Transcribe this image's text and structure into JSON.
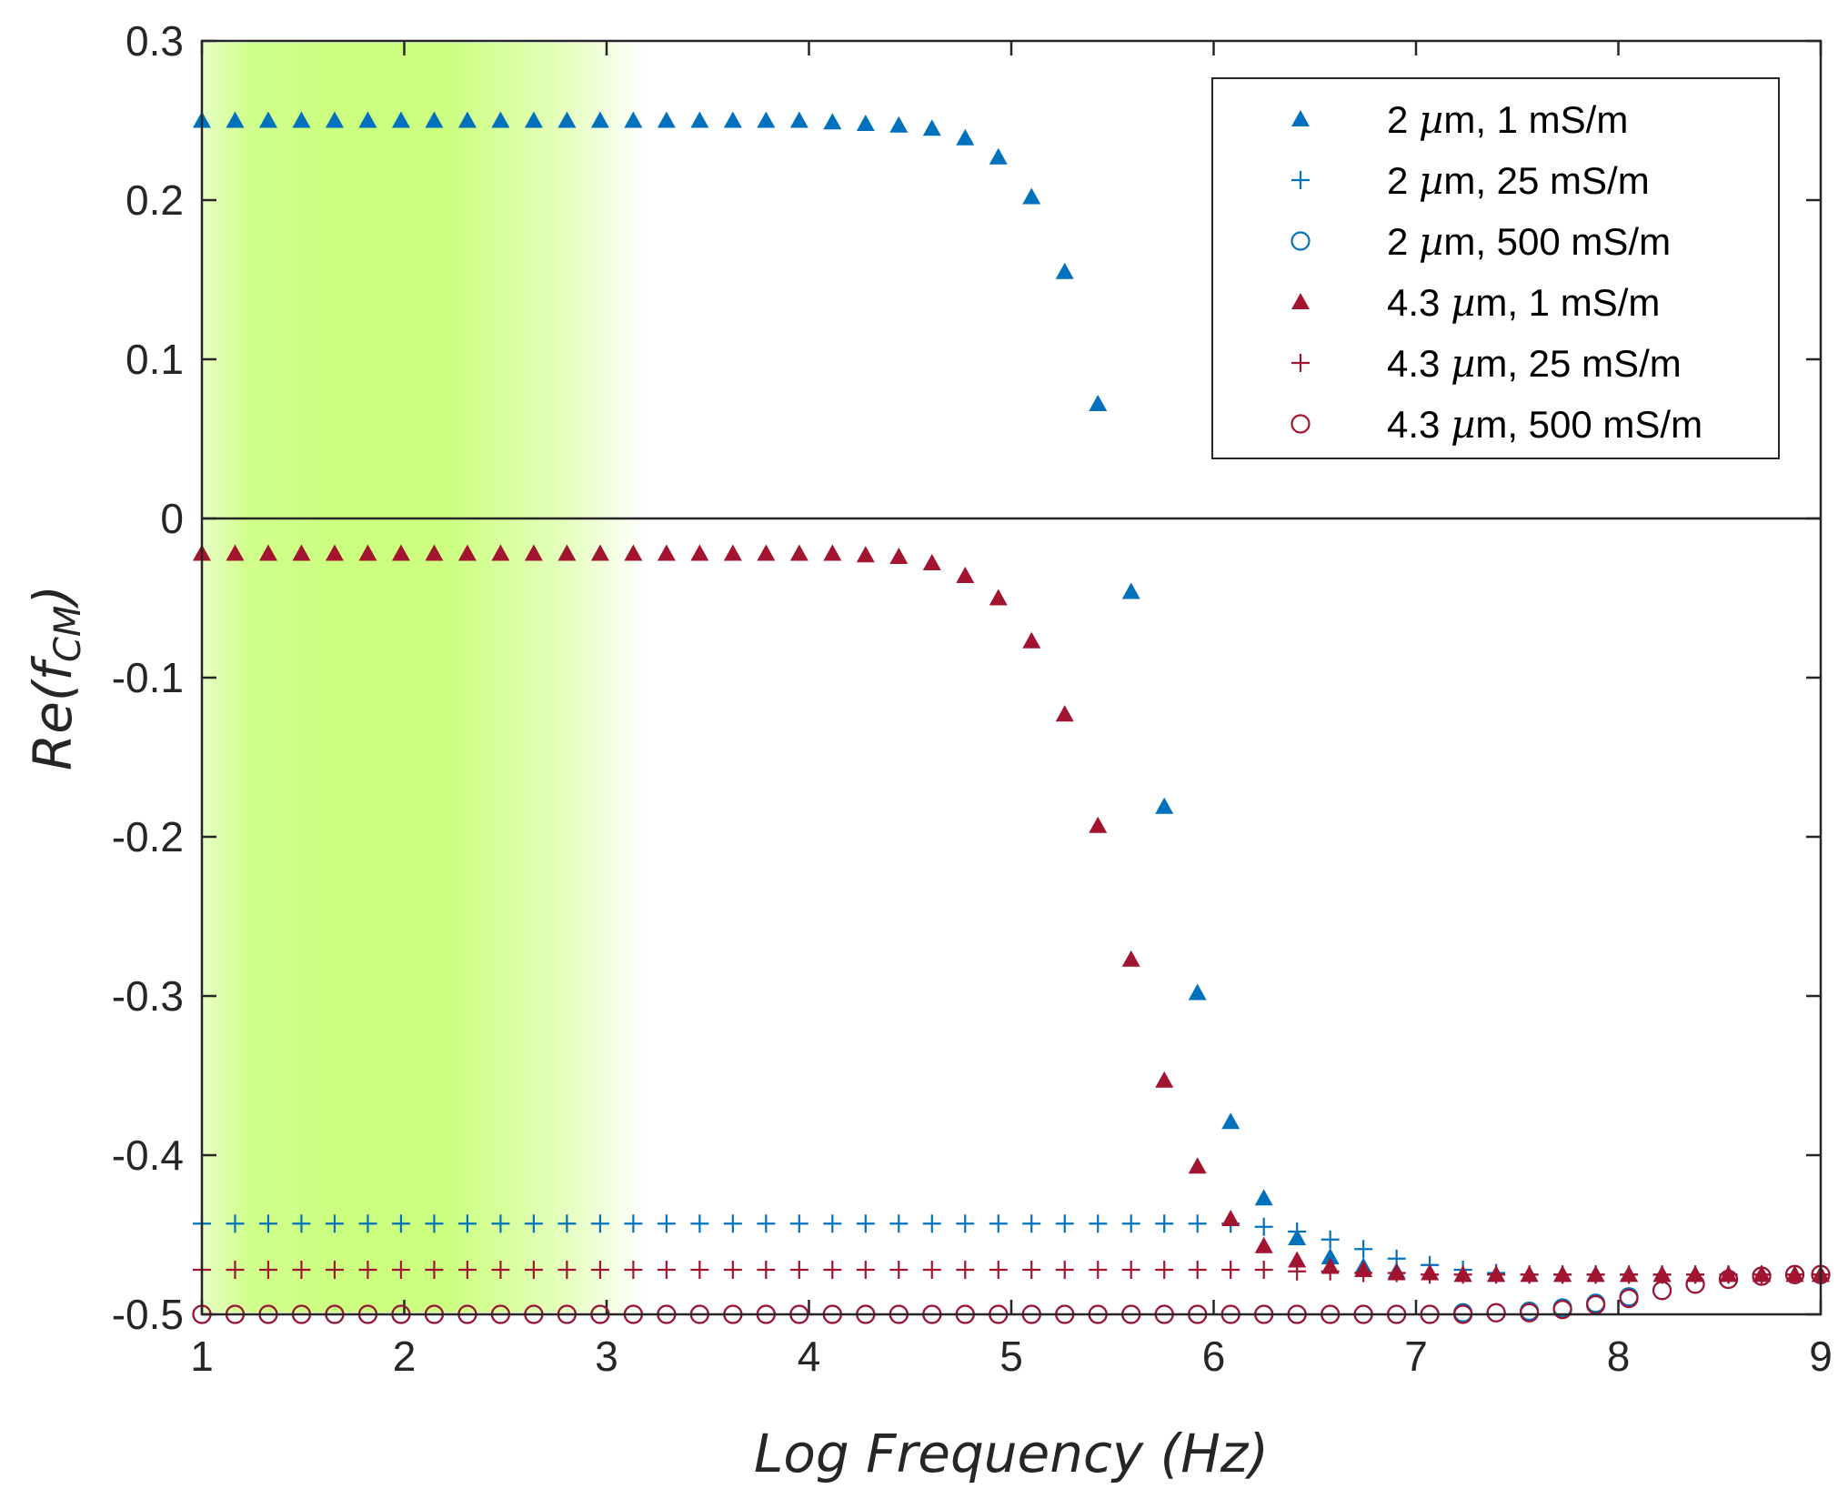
{
  "chart_data": {
    "type": "scatter",
    "title": "",
    "xlabel": "Log Frequency (Hz)",
    "ylabel": "Re(fCM)",
    "ylabel_parts": {
      "main": "Re(f",
      "sub": "CM",
      "close": ")"
    },
    "xlim": [
      1,
      9
    ],
    "ylim": [
      -0.5,
      0.3
    ],
    "xticks": [
      1,
      2,
      3,
      4,
      5,
      6,
      7,
      8,
      9
    ],
    "xtick_labels": [
      "1",
      "2",
      "3",
      "4",
      "5",
      "6",
      "7",
      "8",
      "9"
    ],
    "yticks": [
      -0.5,
      -0.4,
      -0.3,
      -0.2,
      -0.1,
      0,
      0.1,
      0.2,
      0.3
    ],
    "ytick_labels": [
      "-0.5",
      "-0.4",
      "-0.3",
      "-0.2",
      "-0.1",
      "0",
      "0.1",
      "0.2",
      "0.3"
    ],
    "grid": false,
    "zero_line": true,
    "legend_position": "top-right",
    "highlight_band": {
      "x_start": 1,
      "x_end": 3.2,
      "peak_x": 2.3,
      "color": "#ccff80"
    },
    "x": [
      1.0,
      1.164,
      1.328,
      1.492,
      1.656,
      1.82,
      1.984,
      2.148,
      2.312,
      2.476,
      2.64,
      2.804,
      2.968,
      3.132,
      3.296,
      3.46,
      3.624,
      3.788,
      3.952,
      4.116,
      4.28,
      4.444,
      4.608,
      4.772,
      4.936,
      5.1,
      5.264,
      5.428,
      5.592,
      5.756,
      5.92,
      6.084,
      6.248,
      6.412,
      6.576,
      6.74,
      6.904,
      7.068,
      7.232,
      7.396,
      7.56,
      7.724,
      7.888,
      8.052,
      8.216,
      8.38,
      8.544,
      8.708,
      8.872,
      9.0
    ],
    "series": [
      {
        "name": "2 µm, 1 mS/m",
        "legend_prefix": "2 ",
        "legend_suffix": "m, 1 mS/m",
        "marker": "triangle",
        "color": "#0072bd",
        "values": [
          0.25,
          0.25,
          0.25,
          0.25,
          0.25,
          0.25,
          0.25,
          0.25,
          0.25,
          0.25,
          0.25,
          0.25,
          0.25,
          0.25,
          0.25,
          0.25,
          0.25,
          0.25,
          0.25,
          0.249,
          0.248,
          0.247,
          0.245,
          0.239,
          0.227,
          0.202,
          0.155,
          0.072,
          -0.046,
          -0.181,
          -0.298,
          -0.379,
          -0.427,
          -0.452,
          -0.464,
          -0.47,
          -0.473,
          -0.474,
          -0.475,
          -0.475,
          -0.475,
          -0.475,
          -0.475,
          -0.475,
          -0.475,
          -0.475,
          -0.475,
          -0.475,
          -0.475,
          -0.475
        ]
      },
      {
        "name": "2 µm, 25 mS/m",
        "legend_prefix": "2 ",
        "legend_suffix": "m, 25 mS/m",
        "marker": "plus",
        "color": "#0072bd",
        "values": [
          -0.443,
          -0.443,
          -0.443,
          -0.443,
          -0.443,
          -0.443,
          -0.443,
          -0.443,
          -0.443,
          -0.443,
          -0.443,
          -0.443,
          -0.443,
          -0.443,
          -0.443,
          -0.443,
          -0.443,
          -0.443,
          -0.443,
          -0.443,
          -0.443,
          -0.443,
          -0.443,
          -0.443,
          -0.443,
          -0.443,
          -0.443,
          -0.443,
          -0.443,
          -0.443,
          -0.443,
          -0.443,
          -0.445,
          -0.448,
          -0.453,
          -0.459,
          -0.465,
          -0.469,
          -0.472,
          -0.474,
          -0.475,
          -0.475,
          -0.475,
          -0.475,
          -0.475,
          -0.475,
          -0.475,
          -0.475,
          -0.475,
          -0.475
        ]
      },
      {
        "name": "2 µm, 500 mS/m",
        "legend_prefix": "2 ",
        "legend_suffix": "m, 500 mS/m",
        "marker": "circle",
        "color": "#0072bd",
        "values": [
          -0.5,
          -0.5,
          -0.5,
          -0.5,
          -0.5,
          -0.5,
          -0.5,
          -0.5,
          -0.5,
          -0.5,
          -0.5,
          -0.5,
          -0.5,
          -0.5,
          -0.5,
          -0.5,
          -0.5,
          -0.5,
          -0.5,
          -0.5,
          -0.5,
          -0.5,
          -0.5,
          -0.5,
          -0.5,
          -0.5,
          -0.5,
          -0.5,
          -0.5,
          -0.5,
          -0.5,
          -0.5,
          -0.5,
          -0.5,
          -0.5,
          -0.5,
          -0.5,
          -0.5,
          -0.499,
          -0.499,
          -0.498,
          -0.496,
          -0.493,
          -0.489,
          -0.485,
          -0.481,
          -0.478,
          -0.476,
          -0.475,
          -0.475
        ]
      },
      {
        "name": "4.3 µm, 1 mS/m",
        "legend_prefix": "4.3 ",
        "legend_suffix": "m, 1 mS/m",
        "marker": "triangle",
        "color": "#a2142f",
        "values": [
          -0.022,
          -0.022,
          -0.022,
          -0.022,
          -0.022,
          -0.022,
          -0.022,
          -0.022,
          -0.022,
          -0.022,
          -0.022,
          -0.022,
          -0.022,
          -0.022,
          -0.022,
          -0.022,
          -0.022,
          -0.022,
          -0.022,
          -0.022,
          -0.023,
          -0.024,
          -0.028,
          -0.036,
          -0.05,
          -0.077,
          -0.123,
          -0.193,
          -0.277,
          -0.353,
          -0.407,
          -0.44,
          -0.457,
          -0.466,
          -0.47,
          -0.472,
          -0.474,
          -0.474,
          -0.475,
          -0.475,
          -0.475,
          -0.475,
          -0.475,
          -0.475,
          -0.475,
          -0.475,
          -0.475,
          -0.475,
          -0.475,
          -0.475
        ]
      },
      {
        "name": "4.3 µm, 25 mS/m",
        "legend_prefix": "4.3 ",
        "legend_suffix": "m, 25 mS/m",
        "marker": "plus",
        "color": "#a2142f",
        "values": [
          -0.472,
          -0.472,
          -0.472,
          -0.472,
          -0.472,
          -0.472,
          -0.472,
          -0.472,
          -0.472,
          -0.472,
          -0.472,
          -0.472,
          -0.472,
          -0.472,
          -0.472,
          -0.472,
          -0.472,
          -0.472,
          -0.472,
          -0.472,
          -0.472,
          -0.472,
          -0.472,
          -0.472,
          -0.472,
          -0.472,
          -0.472,
          -0.472,
          -0.472,
          -0.472,
          -0.472,
          -0.472,
          -0.472,
          -0.473,
          -0.473,
          -0.474,
          -0.474,
          -0.475,
          -0.475,
          -0.475,
          -0.475,
          -0.475,
          -0.475,
          -0.475,
          -0.475,
          -0.475,
          -0.475,
          -0.475,
          -0.475,
          -0.475
        ]
      },
      {
        "name": "4.3 µm, 500 mS/m",
        "legend_prefix": "4.3 ",
        "legend_suffix": "m, 500 mS/m",
        "marker": "circle",
        "color": "#a2142f",
        "values": [
          -0.5,
          -0.5,
          -0.5,
          -0.5,
          -0.5,
          -0.5,
          -0.5,
          -0.5,
          -0.5,
          -0.5,
          -0.5,
          -0.5,
          -0.5,
          -0.5,
          -0.5,
          -0.5,
          -0.5,
          -0.5,
          -0.5,
          -0.5,
          -0.5,
          -0.5,
          -0.5,
          -0.5,
          -0.5,
          -0.5,
          -0.5,
          -0.5,
          -0.5,
          -0.5,
          -0.5,
          -0.5,
          -0.5,
          -0.5,
          -0.5,
          -0.5,
          -0.5,
          -0.5,
          -0.5,
          -0.499,
          -0.499,
          -0.497,
          -0.494,
          -0.49,
          -0.485,
          -0.481,
          -0.478,
          -0.476,
          -0.475,
          -0.475
        ]
      }
    ]
  }
}
